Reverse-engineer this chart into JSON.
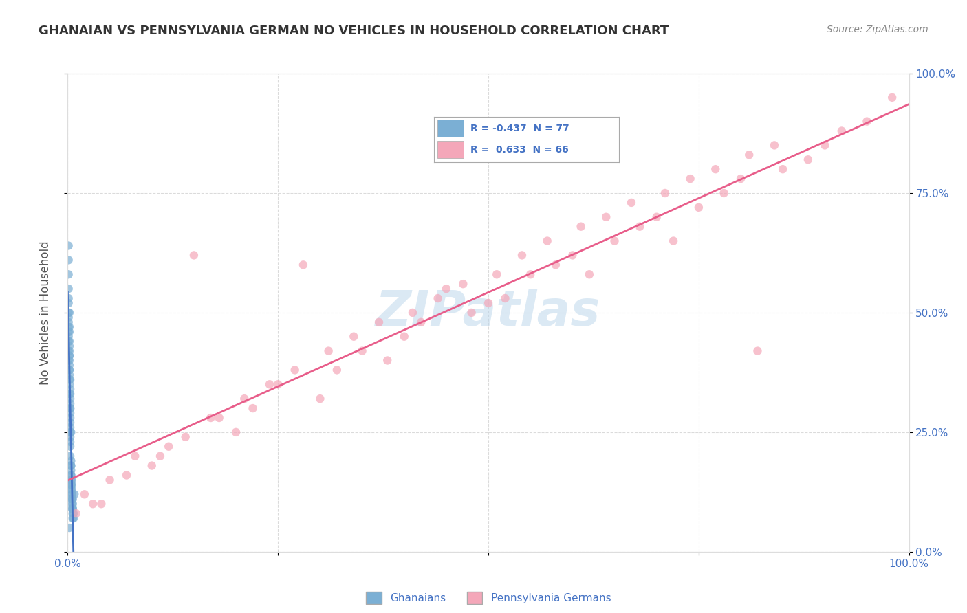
{
  "title": "GHANAIAN VS PENNSYLVANIA GERMAN NO VEHICLES IN HOUSEHOLD CORRELATION CHART",
  "source": "Source: ZipAtlas.com",
  "ylabel": "No Vehicles in Household",
  "xlabel": "",
  "watermark": "ZIPatlas",
  "background_color": "#ffffff",
  "plot_background": "#ffffff",
  "grid_color": "#cccccc",
  "x_ticks": [
    0.0,
    0.25,
    0.5,
    0.75,
    1.0
  ],
  "x_tick_labels": [
    "0.0%",
    "",
    "",
    "",
    "100.0%"
  ],
  "y_tick_labels_right": [
    "100.0%",
    "75.0%",
    "50.0%",
    "25.0%",
    "0.0%"
  ],
  "y_ticks": [
    1.0,
    0.75,
    0.5,
    0.25,
    0.0
  ],
  "xlim": [
    0.0,
    1.0
  ],
  "ylim": [
    0.0,
    1.0
  ],
  "title_color": "#333333",
  "axis_label_color": "#4472c4",
  "right_tick_color": "#4472c4",
  "legend_R1": "-0.437",
  "legend_N1": "77",
  "legend_R2": "0.633",
  "legend_N2": "66",
  "blue_color": "#7bafd4",
  "pink_color": "#f4a7b9",
  "blue_line_color": "#4472c4",
  "pink_line_color": "#e85d8a",
  "legend_label1": "Ghanaians",
  "legend_label2": "Pennsylvania Germans",
  "ghanaian_x": [
    0.002,
    0.003,
    0.001,
    0.005,
    0.004,
    0.006,
    0.003,
    0.002,
    0.001,
    0.007,
    0.008,
    0.003,
    0.002,
    0.004,
    0.001,
    0.003,
    0.005,
    0.006,
    0.002,
    0.001,
    0.003,
    0.004,
    0.005,
    0.002,
    0.001,
    0.006,
    0.003,
    0.004,
    0.002,
    0.005,
    0.001,
    0.003,
    0.007,
    0.002,
    0.004,
    0.001,
    0.003,
    0.005,
    0.002,
    0.006,
    0.003,
    0.001,
    0.004,
    0.002,
    0.005,
    0.003,
    0.001,
    0.002,
    0.004,
    0.006,
    0.003,
    0.002,
    0.001,
    0.005,
    0.004,
    0.003,
    0.002,
    0.001,
    0.006,
    0.004,
    0.003,
    0.002,
    0.005,
    0.001,
    0.003,
    0.004,
    0.002,
    0.001,
    0.005,
    0.003,
    0.002,
    0.001,
    0.004,
    0.002,
    0.003,
    0.001,
    0.002
  ],
  "ghanaian_y": [
    0.35,
    0.3,
    0.4,
    0.15,
    0.25,
    0.1,
    0.2,
    0.38,
    0.42,
    0.08,
    0.12,
    0.28,
    0.33,
    0.18,
    0.45,
    0.22,
    0.14,
    0.09,
    0.36,
    0.48,
    0.24,
    0.19,
    0.13,
    0.39,
    0.5,
    0.11,
    0.27,
    0.16,
    0.37,
    0.12,
    0.46,
    0.23,
    0.07,
    0.4,
    0.17,
    0.44,
    0.26,
    0.11,
    0.41,
    0.09,
    0.29,
    0.47,
    0.15,
    0.43,
    0.1,
    0.31,
    0.49,
    0.38,
    0.14,
    0.08,
    0.32,
    0.41,
    0.52,
    0.12,
    0.16,
    0.34,
    0.44,
    0.55,
    0.07,
    0.18,
    0.3,
    0.46,
    0.11,
    0.53,
    0.25,
    0.14,
    0.42,
    0.58,
    0.09,
    0.33,
    0.47,
    0.61,
    0.13,
    0.5,
    0.36,
    0.64,
    0.05
  ],
  "penn_x": [
    0.01,
    0.02,
    0.03,
    0.05,
    0.08,
    0.1,
    0.12,
    0.15,
    0.18,
    0.2,
    0.22,
    0.25,
    0.28,
    0.3,
    0.32,
    0.35,
    0.38,
    0.4,
    0.42,
    0.45,
    0.48,
    0.5,
    0.52,
    0.55,
    0.58,
    0.6,
    0.62,
    0.65,
    0.68,
    0.7,
    0.72,
    0.75,
    0.78,
    0.8,
    0.82,
    0.85,
    0.88,
    0.9,
    0.92,
    0.95,
    0.98,
    0.04,
    0.07,
    0.11,
    0.14,
    0.17,
    0.21,
    0.24,
    0.27,
    0.31,
    0.34,
    0.37,
    0.41,
    0.44,
    0.47,
    0.51,
    0.54,
    0.57,
    0.61,
    0.64,
    0.67,
    0.71,
    0.74,
    0.77,
    0.81,
    0.84
  ],
  "penn_y": [
    0.08,
    0.12,
    0.1,
    0.15,
    0.2,
    0.18,
    0.22,
    0.62,
    0.28,
    0.25,
    0.3,
    0.35,
    0.6,
    0.32,
    0.38,
    0.42,
    0.4,
    0.45,
    0.48,
    0.55,
    0.5,
    0.52,
    0.53,
    0.58,
    0.6,
    0.62,
    0.58,
    0.65,
    0.68,
    0.7,
    0.65,
    0.72,
    0.75,
    0.78,
    0.42,
    0.8,
    0.82,
    0.85,
    0.88,
    0.9,
    0.95,
    0.1,
    0.16,
    0.2,
    0.24,
    0.28,
    0.32,
    0.35,
    0.38,
    0.42,
    0.45,
    0.48,
    0.5,
    0.53,
    0.56,
    0.58,
    0.62,
    0.65,
    0.68,
    0.7,
    0.73,
    0.75,
    0.78,
    0.8,
    0.83,
    0.85
  ]
}
